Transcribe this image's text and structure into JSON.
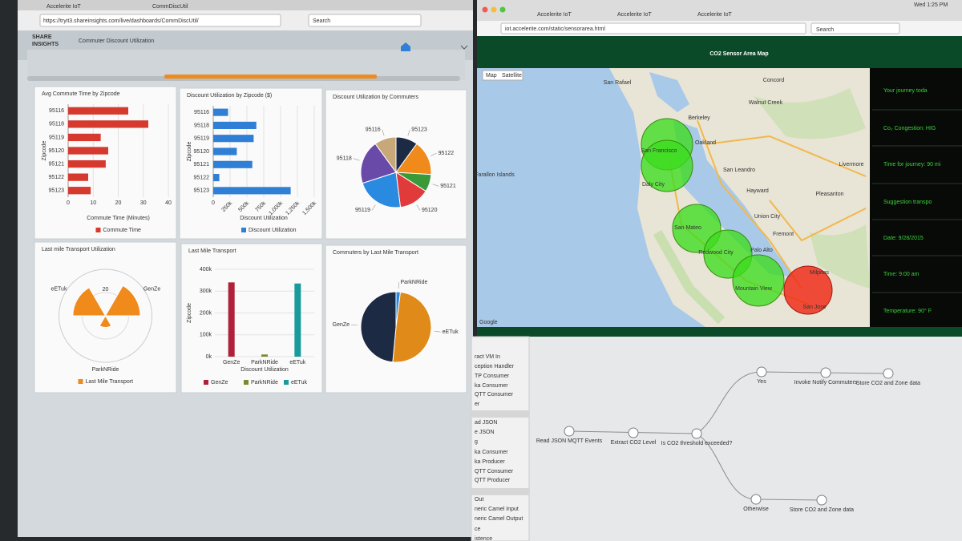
{
  "browser_left": {
    "tabs": [
      "Accelerite IoT",
      "CommDiscUtil"
    ],
    "url": "https://tryit3.shareinsights.com/live/dashboards/CommDiscUtil/",
    "search": "Search"
  },
  "dashboard": {
    "logo": [
      "SHARE",
      "INSIGHTS"
    ],
    "title": "Commuter Discount Utilization"
  },
  "chart_data": [
    {
      "type": "hbar",
      "title": "Avg Commute Time by Zipcode",
      "categories": [
        "95116",
        "95118",
        "95119",
        "95120",
        "95121",
        "95122",
        "95123"
      ],
      "series": [
        {
          "name": "Commute Time",
          "color": "#d63a2f",
          "values": [
            24,
            32,
            13,
            16,
            15,
            8,
            9
          ]
        }
      ],
      "xlim": [
        0,
        40
      ],
      "xticks": [
        0,
        10,
        20,
        30,
        40
      ],
      "x_label": "Commute Time (Minutes)",
      "y_label": "Zipcode",
      "grid": true
    },
    {
      "type": "hbar",
      "title": "Discount Utilization by Zipcode ($)",
      "categories": [
        "95116",
        "95118",
        "95119",
        "95120",
        "95121",
        "95122",
        "95123"
      ],
      "series": [
        {
          "name": "Discount Utilization",
          "color": "#2f7fd6",
          "values": [
            220000,
            640000,
            600000,
            350000,
            580000,
            90000,
            1150000
          ]
        }
      ],
      "xlim": [
        0,
        1500000
      ],
      "xticks": [
        0,
        {
          "value": 250000,
          "label": "250k"
        },
        {
          "value": 500000,
          "label": "500k"
        },
        {
          "value": 750000,
          "label": "750k"
        },
        {
          "value": 1000000,
          "label": "1,000k"
        },
        {
          "value": 1250000,
          "label": "1,250k"
        },
        {
          "value": 1500000,
          "label": "1,500k"
        }
      ],
      "x_label": "Discount Utilization",
      "y_label": "Zipcode",
      "grid": true
    },
    {
      "type": "pie",
      "title": "Discount Utilization by Commuters",
      "categories": [
        "95123",
        "95122",
        "95121",
        "95120",
        "95119",
        "95118",
        "95116"
      ],
      "values": [
        10,
        16,
        8,
        14,
        22,
        20,
        10
      ],
      "colors": [
        "#1d2a44",
        "#f08a1a",
        "#3a9a3a",
        "#e03a3a",
        "#2a8ae0",
        "#6a4aa8",
        "#c8a878"
      ]
    },
    {
      "type": "polar",
      "title": "Last mile Transport Utilization",
      "categories": [
        "eETuk",
        "GenZe",
        "ParkNRide"
      ],
      "series": [
        {
          "name": "Last Mile Transport",
          "color": "#f08a1a",
          "values": [
            28,
            30,
            10
          ]
        }
      ],
      "ylim": [
        0,
        40
      ],
      "yticks": [
        20
      ]
    },
    {
      "type": "bar",
      "title": "Last Mile Transport",
      "categories": [
        "GenZe",
        "ParkNRide",
        "eETuk"
      ],
      "values": [
        340000,
        10000,
        335000
      ],
      "colors": [
        "#b0203a",
        "#7a8a30",
        "#1a9a9a"
      ],
      "ylim": [
        0,
        400000
      ],
      "yticks": [
        {
          "value": 0,
          "label": "0k"
        },
        {
          "value": 100000,
          "label": "100k"
        },
        {
          "value": 200000,
          "label": "200k"
        },
        {
          "value": 300000,
          "label": "300k"
        },
        {
          "value": 400000,
          "label": "400k"
        }
      ],
      "x_label": "Discount Utilization",
      "y_label": "Zipcode",
      "grid": true
    },
    {
      "type": "pie",
      "title": "Commuters by Last Mile Transport",
      "categories": [
        "ParkNRide",
        "eETuk",
        "GenZe"
      ],
      "values": [
        2,
        49.5,
        48.5
      ],
      "colors": [
        "#2a8ae0",
        "#e08a1a",
        "#1d2a44"
      ]
    }
  ],
  "browser_right": {
    "tabs": [
      "Accelerite IoT",
      "Accelerite IoT",
      "Accelerite IoT"
    ],
    "url": "iot.accelerite.com/static/sensorarea.html",
    "search": "Search",
    "clock": "Wed 1:25 PM"
  },
  "map": {
    "title": "CO2 Sensor Area Map",
    "buttons": [
      "Map",
      "Satellite"
    ],
    "places": [
      "San Rafael",
      "Concord",
      "Walnut Creek",
      "Berkeley",
      "Oakland",
      "San Francisco",
      "Daly City",
      "San Leandro",
      "Hayward",
      "Farallon Islands",
      "Livermore",
      "Pleasanton",
      "San Mateo",
      "Union City",
      "Fremont",
      "Redwood City",
      "Palo Alto",
      "Mountain View",
      "San Jose",
      "Milpitas"
    ],
    "attribution": "Google",
    "info": [
      "Your journey toda",
      "Co₂ Congestion: HIG",
      "Time for journey: 90 mi",
      "Suggestion transpo",
      "Date: 9/28/2015",
      "Time: 9:00 am",
      "Temperature: 90° F"
    ]
  },
  "flow": {
    "palette": [
      "ract VM In",
      "ception Handler",
      "TP Consumer",
      "ka Consumer",
      "QTT Consumer",
      "er",
      "ad JSON",
      "e JSON",
      "g",
      "ka Consumer",
      "ka Producer",
      "QTT Consumer",
      "QTT Producer",
      "Out",
      "neric Camel Input",
      "neric Camel Output",
      "ce",
      "istence"
    ],
    "nodes": [
      "Read JSON MQTT Events",
      "Extract CO2 Level",
      "Is CO2 threshold exceeded?",
      "Yes",
      "Invoke Notify Commuters",
      "Store CO2 and Zone data",
      "Otherwise",
      "Store CO2 and Zone data"
    ]
  }
}
